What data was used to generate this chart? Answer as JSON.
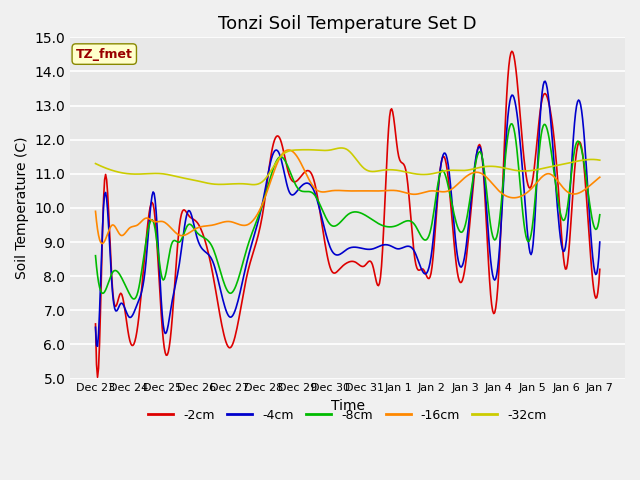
{
  "title": "Tonzi Soil Temperature Set D",
  "xlabel": "Time",
  "ylabel": "Soil Temperature (C)",
  "ylim": [
    5.0,
    15.0
  ],
  "yticks": [
    5.0,
    6.0,
    7.0,
    8.0,
    9.0,
    10.0,
    11.0,
    12.0,
    13.0,
    14.0,
    15.0
  ],
  "xtick_labels": [
    "Dec 23",
    "Dec 24",
    "Dec 25",
    "Dec 26",
    "Dec 27",
    "Dec 28",
    "Dec 29",
    "Dec 30",
    "Dec 31",
    "Jan 1",
    "Jan 2",
    "Jan 3",
    "Jan 4",
    "Jan 5",
    "Jan 6",
    "Jan 7"
  ],
  "series_colors": [
    "#dd0000",
    "#0000cc",
    "#00bb00",
    "#ff8800",
    "#cccc00"
  ],
  "series_labels": [
    "-2cm",
    "-4cm",
    "-8cm",
    "-16cm",
    "-32cm"
  ],
  "legend_label": "TZ_fmet",
  "legend_box_color": "#ffffcc",
  "legend_text_color": "#990000",
  "background_color": "#e8e8e8",
  "grid_color": "#ffffff",
  "title_fontsize": 13,
  "fig_bg": "#f0f0f0",
  "kp_2cm_t": [
    0.0,
    0.1,
    0.25,
    0.5,
    0.75,
    1.0,
    1.25,
    1.5,
    1.75,
    2.0,
    2.25,
    2.5,
    2.75,
    3.0,
    3.5,
    4.0,
    4.5,
    5.0,
    5.25,
    5.5,
    5.75,
    6.0,
    6.5,
    7.0,
    7.25,
    7.5,
    7.75,
    8.0,
    8.25,
    8.5,
    8.75,
    9.0,
    9.25,
    9.5,
    9.75,
    10.0,
    10.25,
    10.5,
    10.75,
    11.0,
    11.25,
    11.5,
    11.75,
    12.0,
    12.25,
    12.5,
    12.75,
    13.0,
    13.25,
    13.5,
    13.75,
    14.0,
    14.25,
    14.5,
    14.75,
    15.0
  ],
  "kp_2cm_v": [
    6.6,
    5.5,
    10.5,
    7.7,
    7.5,
    6.2,
    6.5,
    9.0,
    9.9,
    6.3,
    6.4,
    9.5,
    9.8,
    9.6,
    8.0,
    5.9,
    8.0,
    10.0,
    11.7,
    12.0,
    11.0,
    10.8,
    10.8,
    8.2,
    8.2,
    8.4,
    8.4,
    8.3,
    8.3,
    8.2,
    12.7,
    11.6,
    11.0,
    8.5,
    8.2,
    8.2,
    11.1,
    10.8,
    8.2,
    8.3,
    10.8,
    11.5,
    7.5,
    8.2,
    13.6,
    14.1,
    11.4,
    10.8,
    13.0,
    13.0,
    10.8,
    8.2,
    11.1,
    11.5,
    8.3,
    8.2
  ],
  "kp_4cm_t": [
    0.0,
    0.1,
    0.25,
    0.5,
    0.75,
    1.0,
    1.25,
    1.5,
    1.75,
    2.0,
    2.25,
    2.5,
    2.75,
    3.0,
    3.5,
    4.0,
    4.5,
    5.0,
    5.25,
    5.5,
    5.75,
    6.0,
    6.5,
    7.0,
    7.5,
    8.0,
    8.25,
    8.5,
    8.75,
    9.0,
    9.5,
    10.0,
    10.25,
    10.5,
    10.75,
    11.0,
    11.25,
    11.5,
    11.75,
    12.0,
    12.25,
    12.5,
    12.75,
    13.0,
    13.25,
    13.5,
    14.0,
    14.25,
    14.5,
    14.75,
    15.0
  ],
  "kp_4cm_v": [
    6.5,
    6.5,
    10.2,
    7.6,
    7.2,
    6.8,
    7.2,
    8.4,
    10.4,
    6.7,
    7.1,
    8.4,
    9.9,
    9.2,
    8.4,
    6.8,
    8.4,
    10.3,
    11.5,
    11.5,
    10.5,
    10.5,
    10.5,
    8.8,
    8.8,
    8.8,
    8.8,
    8.9,
    8.9,
    8.8,
    8.7,
    8.7,
    11.1,
    11.2,
    8.7,
    8.7,
    11.0,
    11.5,
    8.5,
    8.6,
    12.5,
    13.0,
    10.5,
    8.8,
    13.0,
    13.0,
    9.0,
    12.5,
    12.5,
    9.0,
    9.0
  ],
  "kp_8cm_t": [
    0.0,
    0.2,
    0.5,
    0.75,
    1.0,
    1.25,
    1.5,
    1.75,
    2.0,
    2.25,
    2.5,
    2.75,
    3.0,
    3.5,
    4.0,
    4.5,
    5.0,
    5.5,
    6.0,
    6.5,
    7.0,
    7.5,
    8.0,
    8.5,
    9.0,
    9.5,
    10.0,
    10.25,
    10.5,
    10.75,
    11.0,
    11.25,
    11.5,
    11.75,
    12.0,
    12.25,
    12.5,
    12.75,
    13.0,
    13.25,
    13.5,
    14.0,
    14.25,
    14.5,
    14.75,
    15.0
  ],
  "kp_8cm_v": [
    8.6,
    7.5,
    8.1,
    8.0,
    7.5,
    7.5,
    9.0,
    9.5,
    7.9,
    8.9,
    9.0,
    9.5,
    9.3,
    8.8,
    7.5,
    8.8,
    10.2,
    11.5,
    10.6,
    10.4,
    9.5,
    9.8,
    9.8,
    9.5,
    9.5,
    9.5,
    9.5,
    11.0,
    10.6,
    9.5,
    9.5,
    11.0,
    11.5,
    9.5,
    9.5,
    12.0,
    12.0,
    9.5,
    9.5,
    12.1,
    12.0,
    9.8,
    11.7,
    11.5,
    9.8,
    9.8
  ],
  "kp_16cm_t": [
    0.0,
    0.15,
    0.5,
    0.75,
    1.0,
    1.25,
    1.5,
    1.75,
    2.0,
    2.5,
    3.0,
    3.5,
    4.0,
    4.5,
    5.0,
    5.5,
    6.0,
    6.5,
    7.0,
    7.5,
    8.0,
    8.5,
    9.0,
    9.5,
    10.0,
    10.5,
    11.0,
    11.5,
    12.0,
    12.5,
    13.0,
    13.5,
    14.0,
    14.5,
    15.0
  ],
  "kp_16cm_v": [
    9.9,
    9.0,
    9.5,
    9.2,
    9.4,
    9.5,
    9.7,
    9.6,
    9.6,
    9.2,
    9.4,
    9.5,
    9.6,
    9.5,
    10.2,
    11.5,
    11.5,
    10.6,
    10.5,
    10.5,
    10.5,
    10.5,
    10.5,
    10.4,
    10.5,
    10.5,
    10.9,
    11.0,
    10.5,
    10.3,
    10.6,
    11.0,
    10.5,
    10.5,
    10.9
  ],
  "kp_32cm_t": [
    0.0,
    0.5,
    1.0,
    1.5,
    2.0,
    2.5,
    3.0,
    3.5,
    4.0,
    4.5,
    5.0,
    5.5,
    6.0,
    6.5,
    7.0,
    7.5,
    8.0,
    8.5,
    9.0,
    9.5,
    10.0,
    10.5,
    11.0,
    11.5,
    12.0,
    12.5,
    13.0,
    13.5,
    14.0,
    14.5,
    15.0
  ],
  "kp_32cm_v": [
    11.3,
    11.1,
    11.0,
    11.0,
    11.0,
    10.9,
    10.8,
    10.7,
    10.7,
    10.7,
    10.8,
    11.5,
    11.7,
    11.7,
    11.7,
    11.7,
    11.15,
    11.1,
    11.1,
    11.0,
    11.0,
    11.1,
    11.1,
    11.2,
    11.2,
    11.1,
    11.1,
    11.2,
    11.3,
    11.4,
    11.4
  ]
}
